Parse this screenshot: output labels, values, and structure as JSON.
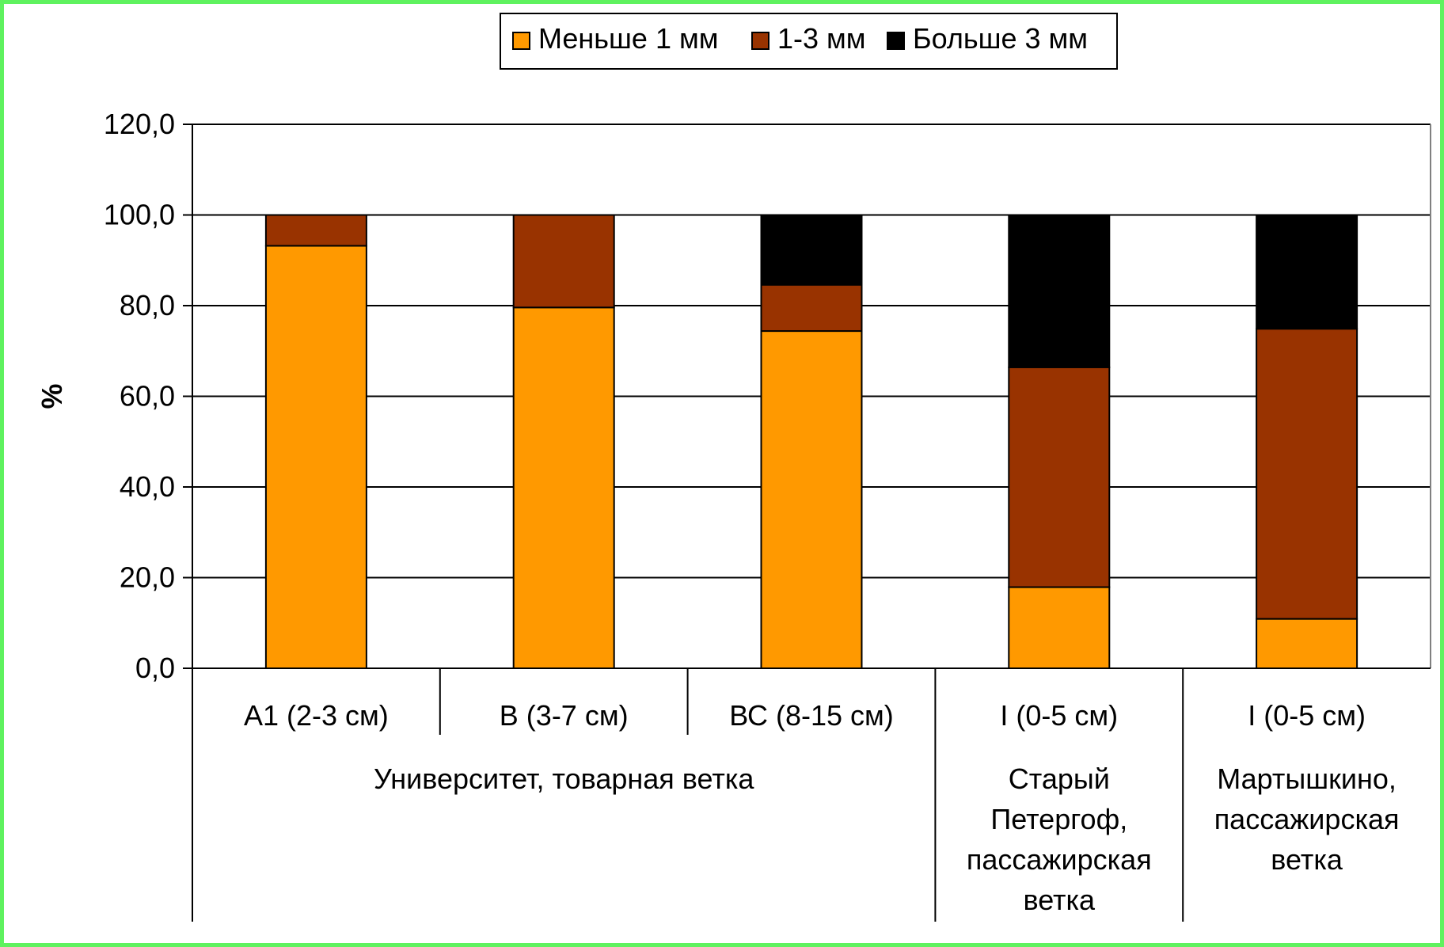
{
  "chart_data": {
    "type": "bar",
    "stacked": true,
    "categories": [
      "А1 (2-3 см)",
      "В (3-7 см)",
      "ВС (8-15 см)",
      "I (0-5 см)",
      "I (0-5 см)"
    ],
    "groups": [
      {
        "label_lines": [
          "Университет, товарная ветка"
        ],
        "span": [
          0,
          2
        ]
      },
      {
        "label_lines": [
          "Старый",
          "Петергоф,",
          "пассажирская",
          "ветка"
        ],
        "span": [
          3,
          3
        ]
      },
      {
        "label_lines": [
          "Мартышкино,",
          "пассажирская",
          "ветка"
        ],
        "span": [
          4,
          4
        ]
      }
    ],
    "series": [
      {
        "name": "Меньше 1 мм",
        "color": "#ff9900",
        "values": [
          93.2,
          79.6,
          74.4,
          17.9,
          10.9
        ]
      },
      {
        "name": "1-3 мм",
        "color": "#993300",
        "values": [
          6.8,
          20.4,
          10.2,
          48.5,
          64.0
        ]
      },
      {
        "name": "Больше 3 мм",
        "color": "#000000",
        "values": [
          0.0,
          0.0,
          15.4,
          33.6,
          25.1
        ]
      }
    ],
    "ylabel": "%",
    "ylim": [
      0,
      120
    ],
    "yticks": [
      "0,0",
      "20,0",
      "40,0",
      "60,0",
      "80,0",
      "100,0",
      "120,0"
    ],
    "grid": true,
    "legend_position": "top-center",
    "frame_color": "#5ff25f"
  }
}
